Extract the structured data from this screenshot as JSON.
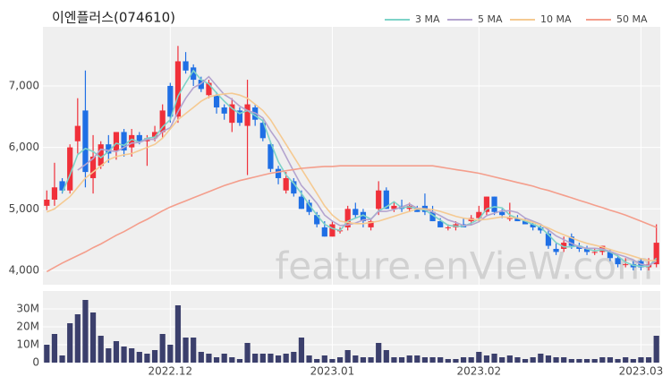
{
  "chart_data": {
    "type": "candlestick",
    "title": "이엔플러스(074610)",
    "watermark": "feature.enVieW.com",
    "categories": [
      null,
      null,
      null,
      null,
      null,
      null,
      null,
      null,
      null,
      null,
      null,
      null,
      null,
      null,
      null,
      null,
      "2022.12",
      null,
      null,
      null,
      null,
      null,
      null,
      null,
      null,
      null,
      null,
      null,
      null,
      null,
      null,
      null,
      null,
      null,
      null,
      null,
      null,
      "2023.01",
      null,
      null,
      null,
      null,
      null,
      null,
      null,
      null,
      null,
      null,
      null,
      null,
      null,
      null,
      null,
      null,
      null,
      null,
      "2023.02",
      null,
      null,
      null,
      null,
      null,
      null,
      null,
      null,
      null,
      null,
      null,
      null,
      null,
      null,
      null,
      null,
      null,
      null,
      null,
      null,
      "2023.03",
      null,
      null
    ],
    "open": [
      5050,
      5150,
      5450,
      5300,
      6100,
      6600,
      5500,
      5700,
      6050,
      5950,
      6250,
      6000,
      6200,
      6100,
      6150,
      6250,
      7000,
      6500,
      7400,
      7300,
      7100,
      6850,
      6850,
      6650,
      6400,
      6600,
      6350,
      6650,
      6400,
      6050,
      5650,
      5300,
      5450,
      5200,
      5100,
      4900,
      4700,
      4550,
      4650,
      4700,
      5000,
      4950,
      4700,
      5000,
      5300,
      5000,
      5050,
      5000,
      5000,
      5050,
      4950,
      4800,
      4700,
      4700,
      4750,
      4800,
      4850,
      4950,
      5200,
      4950,
      4850,
      4850,
      4800,
      4750,
      4700,
      4600,
      4350,
      4350,
      4550,
      4400,
      4350,
      4300,
      4300,
      4300,
      4200,
      4100,
      4100,
      4150,
      4050,
      4100
    ],
    "high": [
      5300,
      5750,
      5500,
      6050,
      6800,
      7250,
      6200,
      6100,
      6200,
      6250,
      6300,
      6300,
      6250,
      6200,
      6350,
      6700,
      7050,
      7650,
      7550,
      7350,
      7150,
      7100,
      6900,
      6700,
      6800,
      6650,
      7100,
      6700,
      6450,
      6100,
      5700,
      5600,
      5500,
      5300,
      5150,
      4950,
      4800,
      4800,
      4700,
      5050,
      5100,
      5000,
      4850,
      5450,
      5350,
      5100,
      5150,
      5100,
      5050,
      5250,
      5050,
      4850,
      4750,
      4800,
      4850,
      4900,
      5050,
      5200,
      5200,
      5000,
      5100,
      4900,
      4850,
      4800,
      4750,
      4650,
      4450,
      4550,
      4600,
      4450,
      4400,
      4350,
      4400,
      4350,
      4250,
      4200,
      4150,
      4200,
      4200,
      4750
    ],
    "low": [
      4980,
      5050,
      5250,
      5250,
      5900,
      5350,
      5250,
      5650,
      5750,
      5800,
      5850,
      5850,
      6050,
      5700,
      6100,
      6150,
      6400,
      6400,
      7200,
      7000,
      6900,
      6800,
      6550,
      6450,
      6250,
      6350,
      5550,
      6350,
      6100,
      5600,
      5400,
      5250,
      5200,
      5000,
      4900,
      4700,
      4550,
      4550,
      4600,
      4650,
      4850,
      4700,
      4650,
      4900,
      5000,
      4950,
      4950,
      4950,
      4950,
      4900,
      4800,
      4700,
      4650,
      4650,
      4700,
      4750,
      4800,
      4900,
      4900,
      4850,
      4800,
      4800,
      4750,
      4650,
      4600,
      4350,
      4250,
      4300,
      4350,
      4300,
      4250,
      4250,
      4250,
      4150,
      4050,
      4050,
      4000,
      4000,
      4000,
      4050
    ],
    "close": [
      5150,
      5350,
      5300,
      6000,
      6350,
      5600,
      5850,
      6050,
      5900,
      6250,
      5950,
      6200,
      6100,
      6150,
      6250,
      6600,
      6500,
      7400,
      7250,
      7100,
      6950,
      7050,
      6650,
      6550,
      6700,
      6400,
      6700,
      6450,
      6150,
      5650,
      5500,
      5500,
      5250,
      5000,
      4950,
      4750,
      4550,
      4750,
      4650,
      5000,
      4900,
      4800,
      4800,
      5300,
      5000,
      5050,
      5000,
      5050,
      4950,
      4950,
      4800,
      4700,
      4700,
      4750,
      4700,
      4850,
      4950,
      5200,
      4950,
      4900,
      4850,
      4800,
      4750,
      4700,
      4650,
      4400,
      4300,
      4450,
      4400,
      4350,
      4300,
      4300,
      4400,
      4200,
      4100,
      4100,
      4050,
      4050,
      4100,
      4450
    ],
    "volume": [
      10,
      16,
      4,
      22,
      27,
      35,
      28,
      15,
      8,
      12,
      9,
      8,
      6,
      5,
      7,
      16,
      10,
      32,
      14,
      14,
      6,
      5,
      3,
      5,
      3,
      2,
      11,
      5,
      5,
      5,
      4,
      5,
      6,
      14,
      4,
      2,
      4,
      2,
      3,
      7,
      4,
      3,
      3,
      11,
      7,
      3,
      3,
      4,
      4,
      3,
      3,
      3,
      2,
      2,
      3,
      3,
      6,
      4,
      5,
      3,
      4,
      3,
      2,
      3,
      5,
      4,
      3,
      3,
      2,
      2,
      2,
      2,
      3,
      3,
      2,
      3,
      2,
      3,
      3,
      15
    ],
    "up_color": "#f0303a",
    "down_color": "#1f6fe5",
    "volume_color": "#3b3f6c",
    "series": [
      {
        "name": "3 MA",
        "color": "#7ed3c8",
        "values": [
          null,
          null,
          5267,
          5550,
          5883,
          5983,
          5933,
          5833,
          5933,
          6067,
          6033,
          6133,
          6083,
          6150,
          6167,
          6333,
          6450,
          6833,
          7050,
          7250,
          7100,
          7033,
          6883,
          6750,
          6633,
          6550,
          6600,
          6517,
          6433,
          6083,
          5767,
          5550,
          5417,
          5250,
          5067,
          4900,
          4750,
          4683,
          4650,
          4800,
          4850,
          4900,
          4833,
          4967,
          5033,
          5117,
          5017,
          5033,
          5000,
          4983,
          4900,
          4817,
          4733,
          4717,
          4717,
          4767,
          4833,
          5000,
          5033,
          5017,
          4900,
          4850,
          4800,
          4750,
          4700,
          4583,
          4450,
          4383,
          4383,
          4400,
          4350,
          4317,
          4333,
          4300,
          4233,
          4133,
          4083,
          4067,
          4067,
          4200
        ]
      },
      {
        "name": "5 MA",
        "color": "#b4a4cf",
        "values": [
          null,
          null,
          null,
          null,
          5630,
          5720,
          5820,
          5970,
          5950,
          5930,
          6000,
          6070,
          6080,
          6130,
          6130,
          6260,
          6320,
          6580,
          6800,
          6970,
          7040,
          7150,
          7000,
          6860,
          6780,
          6670,
          6600,
          6560,
          6480,
          6270,
          6090,
          5850,
          5610,
          5380,
          5240,
          5090,
          4900,
          4800,
          4730,
          4740,
          4770,
          4820,
          4830,
          4960,
          4960,
          4990,
          5030,
          5080,
          5010,
          5000,
          4950,
          4890,
          4820,
          4780,
          4730,
          4740,
          4790,
          4890,
          4930,
          4970,
          4970,
          4940,
          4850,
          4800,
          4750,
          4660,
          4560,
          4500,
          4440,
          4380,
          4360,
          4360,
          4350,
          4310,
          4260,
          4220,
          4170,
          4100,
          4080,
          4150
        ]
      },
      {
        "name": "10 MA",
        "color": "#f5ca92",
        "values": [
          4950,
          5000,
          5100,
          5200,
          5350,
          5500,
          5600,
          5700,
          5800,
          5850,
          5880,
          5900,
          5950,
          6000,
          6050,
          6150,
          6300,
          6450,
          6550,
          6650,
          6750,
          6820,
          6850,
          6870,
          6880,
          6850,
          6800,
          6700,
          6600,
          6450,
          6250,
          6050,
          5850,
          5650,
          5450,
          5250,
          5050,
          4900,
          4800,
          4780,
          4760,
          4760,
          4780,
          4800,
          4840,
          4880,
          4920,
          4960,
          5000,
          5000,
          4990,
          4960,
          4920,
          4880,
          4850,
          4830,
          4820,
          4830,
          4850,
          4870,
          4860,
          4850,
          4820,
          4780,
          4740,
          4690,
          4630,
          4580,
          4530,
          4480,
          4440,
          4410,
          4380,
          4340,
          4300,
          4270,
          4230,
          4190,
          4160,
          4160
        ]
      },
      {
        "name": "50 MA",
        "color": "#f49e8c",
        "values": [
          3980,
          4050,
          4120,
          4180,
          4240,
          4300,
          4370,
          4430,
          4500,
          4570,
          4630,
          4700,
          4770,
          4830,
          4900,
          4970,
          5030,
          5080,
          5130,
          5180,
          5230,
          5280,
          5330,
          5380,
          5420,
          5460,
          5490,
          5520,
          5550,
          5580,
          5600,
          5620,
          5640,
          5660,
          5670,
          5680,
          5690,
          5690,
          5700,
          5700,
          5700,
          5700,
          5700,
          5700,
          5700,
          5700,
          5700,
          5700,
          5700,
          5700,
          5700,
          5680,
          5660,
          5640,
          5620,
          5600,
          5580,
          5550,
          5520,
          5490,
          5460,
          5430,
          5400,
          5370,
          5330,
          5300,
          5260,
          5220,
          5180,
          5140,
          5100,
          5060,
          5020,
          4980,
          4940,
          4900,
          4850,
          4800,
          4750,
          4700
        ]
      }
    ],
    "ylim": [
      3767,
      7960
    ],
    "yticks": [
      {
        "value": 4000,
        "label": "4,000"
      },
      {
        "value": 5000,
        "label": "5,000"
      },
      {
        "value": 6000,
        "label": "6,000"
      },
      {
        "value": 7000,
        "label": "7,000"
      }
    ],
    "volume_ylim": [
      0,
      40
    ],
    "volume_yticks": [
      {
        "value": 0,
        "label": "0"
      },
      {
        "value": 10,
        "label": "10M"
      },
      {
        "value": 20,
        "label": "20M"
      },
      {
        "value": 30,
        "label": "30M"
      }
    ],
    "grid": true
  }
}
